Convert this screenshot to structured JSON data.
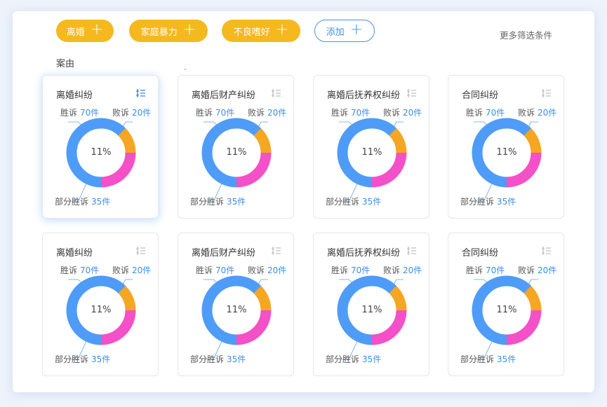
{
  "filters": [
    {
      "label": "离婚",
      "style": "active"
    },
    {
      "label": "家庭暴力",
      "style": "active"
    },
    {
      "label": "不良嗜好",
      "style": "active"
    },
    {
      "label": "添加",
      "style": "outline"
    }
  ],
  "more_filters_label": "更多筛选条件",
  "section_label": "案由",
  "colors": {
    "win": "#4e9cf7",
    "lose": "#f5a623",
    "partial": "#f450c8",
    "accent": "#4a90e2",
    "tag": "#f5b81e"
  },
  "cards": [
    {
      "title": "离婚纠纷",
      "selected": true,
      "center": "11%",
      "win_label": "胜诉",
      "win_value": "70件",
      "lose_label": "败诉",
      "lose_value": "20件",
      "partial_label": "部分胜诉",
      "partial_value": "35件"
    },
    {
      "title": "离婚后财产纠纷",
      "selected": false,
      "center": "11%",
      "win_label": "胜诉",
      "win_value": "70件",
      "lose_label": "败诉",
      "lose_value": "20件",
      "partial_label": "部分胜诉",
      "partial_value": "35件"
    },
    {
      "title": "离婚后抚养权纠纷",
      "selected": false,
      "center": "11%",
      "win_label": "胜诉",
      "win_value": "70件",
      "lose_label": "败诉",
      "lose_value": "20件",
      "partial_label": "部分胜诉",
      "partial_value": "35件"
    },
    {
      "title": "合同纠纷",
      "selected": false,
      "center": "11%",
      "win_label": "胜诉",
      "win_value": "70件",
      "lose_label": "败诉",
      "lose_value": "20件",
      "partial_label": "部分胜诉",
      "partial_value": "35件"
    },
    {
      "title": "离婚纠纷",
      "selected": false,
      "center": "11%",
      "win_label": "胜诉",
      "win_value": "70件",
      "lose_label": "败诉",
      "lose_value": "20件",
      "partial_label": "部分胜诉",
      "partial_value": "35件"
    },
    {
      "title": "离婚后财产纠纷",
      "selected": false,
      "center": "11%",
      "win_label": "胜诉",
      "win_value": "70件",
      "lose_label": "败诉",
      "lose_value": "20件",
      "partial_label": "部分胜诉",
      "partial_value": "35件"
    },
    {
      "title": "离婚后抚养权纠纷",
      "selected": false,
      "center": "11%",
      "win_label": "胜诉",
      "win_value": "70件",
      "lose_label": "败诉",
      "lose_value": "20件",
      "partial_label": "部分胜诉",
      "partial_value": "35件"
    },
    {
      "title": "合同纠纷",
      "selected": false,
      "center": "11%",
      "win_label": "胜诉",
      "win_value": "70件",
      "lose_label": "败诉",
      "lose_value": "20件",
      "partial_label": "部分胜诉",
      "partial_value": "35件"
    }
  ]
}
